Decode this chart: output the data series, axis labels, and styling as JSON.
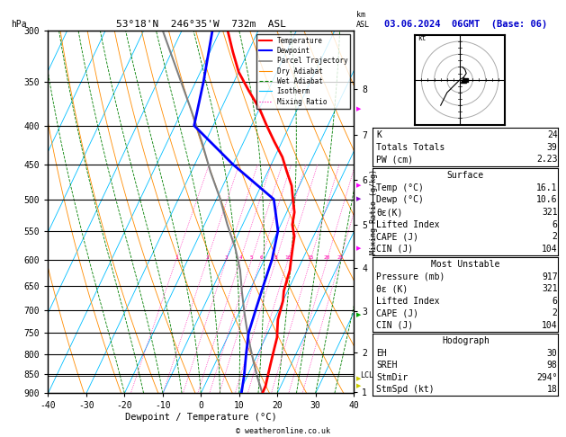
{
  "title_left": "53°18'N  246°35'W  732m  ASL",
  "title_right": "03.06.2024  06GMT  (Base: 06)",
  "xlabel": "Dewpoint / Temperature (°C)",
  "ylabel_left": "hPa",
  "temp_color": "#ff0000",
  "dewp_color": "#0000ff",
  "parcel_color": "#808080",
  "dry_adiabat_color": "#ff8c00",
  "wet_adiabat_color": "#008000",
  "isotherm_color": "#00bfff",
  "mixing_ratio_color": "#ff00aa",
  "bg_color": "#ffffff",
  "x_min": -40,
  "x_max": 40,
  "pressure_levels": [
    300,
    350,
    400,
    450,
    500,
    550,
    600,
    650,
    700,
    750,
    800,
    850,
    900
  ],
  "km_labels": [
    1,
    2,
    3,
    4,
    5,
    6,
    7,
    8
  ],
  "km_pressures": [
    897,
    795,
    701,
    616,
    540,
    472,
    411,
    358
  ],
  "lcl_pressure": 853,
  "temp_profile": {
    "pressure": [
      300,
      320,
      340,
      360,
      380,
      400,
      420,
      440,
      460,
      480,
      500,
      520,
      540,
      560,
      580,
      600,
      620,
      640,
      660,
      680,
      700,
      720,
      740,
      760,
      780,
      800,
      820,
      840,
      860,
      880,
      900
    ],
    "temp": [
      -38,
      -34,
      -30,
      -25,
      -20,
      -16,
      -12,
      -8,
      -5,
      -2,
      0,
      2,
      3,
      5,
      6,
      7,
      8,
      8.5,
      9,
      10,
      10.5,
      11,
      12,
      13,
      13.5,
      14,
      14.5,
      15,
      15.5,
      16,
      16.1
    ]
  },
  "dewp_profile": {
    "pressure": [
      300,
      350,
      400,
      450,
      500,
      550,
      600,
      650,
      700,
      750,
      800,
      850,
      900
    ],
    "dewp": [
      -42,
      -38,
      -35,
      -20,
      -5,
      0,
      2,
      3,
      4,
      5,
      7,
      9,
      10.6
    ]
  },
  "parcel_profile": {
    "pressure": [
      900,
      860,
      820,
      780,
      740,
      700,
      660,
      620,
      580,
      540,
      500,
      460,
      420,
      380,
      340,
      300
    ],
    "temp": [
      16.1,
      13,
      10,
      7,
      4,
      1,
      -2,
      -5,
      -9,
      -14,
      -19,
      -25,
      -31,
      -38,
      -46,
      -55
    ]
  },
  "stats": {
    "K": 24,
    "Totals_Totals": 39,
    "PW_cm": "2.23",
    "Surface_Temp": "16.1",
    "Surface_Dewp": "10.6",
    "Surface_ThetaE": 321,
    "Surface_LI": 6,
    "Surface_CAPE": 2,
    "Surface_CIN": 104,
    "MU_Pressure": 917,
    "MU_ThetaE": 321,
    "MU_LI": 6,
    "MU_CAPE": 2,
    "MU_CIN": 104,
    "EH": 30,
    "SREH": 98,
    "StmDir": "294°",
    "StmSpd": 18
  },
  "skew_factor": 45
}
